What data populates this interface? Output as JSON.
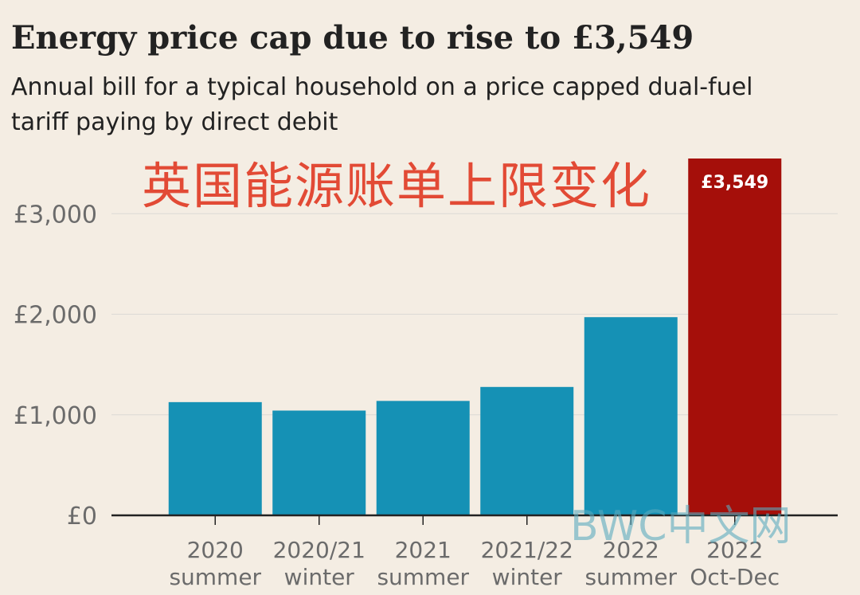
{
  "chart_data": {
    "type": "bar",
    "title": "Energy price cap due to rise to £3,549",
    "subtitle": "Annual bill for a typical household on a price capped dual-fuel tariff paying by direct debit",
    "xlabel": "",
    "ylabel": "",
    "ylim": [
      0,
      3549
    ],
    "yticks": [
      0,
      1000,
      2000,
      3000
    ],
    "ytick_labels": [
      "£0",
      "£1,000",
      "£2,000",
      "£3,000"
    ],
    "categories": [
      [
        "2020",
        "summer"
      ],
      [
        "2020/21",
        "winter"
      ],
      [
        "2021",
        "summer"
      ],
      [
        "2021/22",
        "winter"
      ],
      [
        "2022",
        "summer"
      ],
      [
        "2022",
        "Oct-Dec"
      ]
    ],
    "values": [
      1126,
      1042,
      1138,
      1277,
      1971,
      3549
    ],
    "colors": [
      "#1591b5",
      "#1591b5",
      "#1591b5",
      "#1591b5",
      "#1591b5",
      "#a50f0a"
    ],
    "data_labels": [
      "",
      "",
      "",
      "",
      "",
      "£3,549"
    ],
    "grid": true
  },
  "overlay_text": "英国能源账单上限变化",
  "watermark_text": "BWC中文网",
  "colors": {
    "background": "#f4ede3",
    "grid": "#dcdad5",
    "axis": "#222222",
    "text": "#222222",
    "muted": "#6b6b6b"
  }
}
